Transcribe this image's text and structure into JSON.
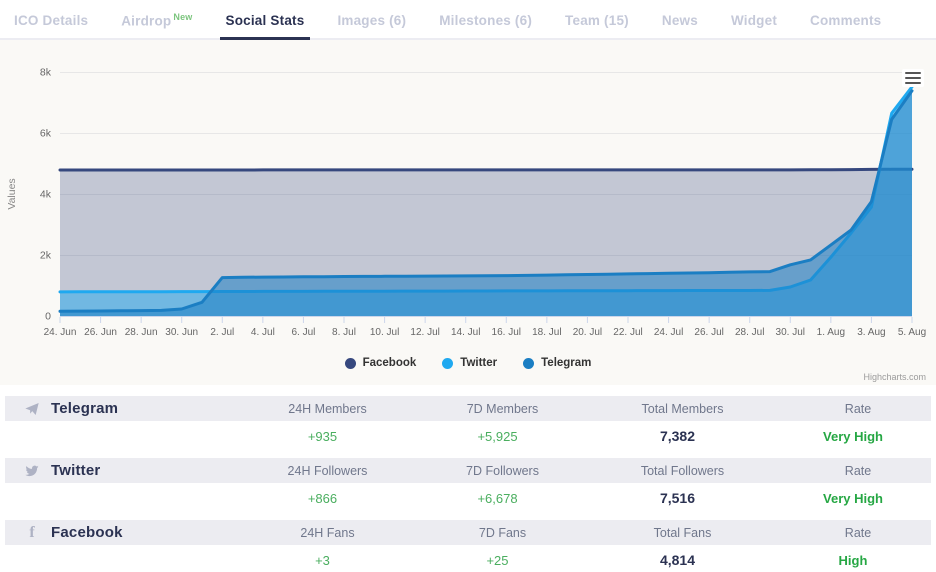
{
  "tabs": {
    "items": [
      {
        "label": "ICO Details",
        "active": false,
        "badge": null
      },
      {
        "label": "Airdrop",
        "active": false,
        "badge": "New"
      },
      {
        "label": "Social Stats",
        "active": true,
        "badge": null
      },
      {
        "label": "Images (6)",
        "active": false,
        "badge": null
      },
      {
        "label": "Milestones (6)",
        "active": false,
        "badge": null
      },
      {
        "label": "Team (15)",
        "active": false,
        "badge": null
      },
      {
        "label": "News",
        "active": false,
        "badge": null
      },
      {
        "label": "Widget",
        "active": false,
        "badge": null
      },
      {
        "label": "Comments",
        "active": false,
        "badge": null
      }
    ]
  },
  "chart_data": {
    "type": "area",
    "title": "",
    "xlabel": "",
    "ylabel": "Values",
    "ylim": [
      0,
      8000
    ],
    "yticks": [
      0,
      2000,
      4000,
      6000,
      8000
    ],
    "ytick_labels": [
      "0",
      "2k",
      "4k",
      "6k",
      "8k"
    ],
    "grid": true,
    "legend_position": "bottom",
    "credits": "Highcharts.com",
    "x_is_daily_dates": "2018-06-24 to 2018-08-05",
    "xtick_every_days": 2,
    "xtick_labels": [
      "24. Jun",
      "26. Jun",
      "28. Jun",
      "30. Jun",
      "2. Jul",
      "4. Jul",
      "6. Jul",
      "8. Jul",
      "10. Jul",
      "12. Jul",
      "14. Jul",
      "16. Jul",
      "18. Jul",
      "20. Jul",
      "22. Jul",
      "24. Jul",
      "26. Jul",
      "28. Jul",
      "30. Jul",
      "1. Aug",
      "3. Aug",
      "5. Aug"
    ],
    "series": [
      {
        "name": "Facebook",
        "color": "#36487e",
        "fill_opacity": 0.28,
        "values": [
          4786,
          4786,
          4786,
          4787,
          4787,
          4787,
          4788,
          4788,
          4788,
          4788,
          4789,
          4789,
          4789,
          4789,
          4789,
          4790,
          4790,
          4790,
          4790,
          4790,
          4790,
          4790,
          4790,
          4790,
          4790,
          4790,
          4790,
          4790,
          4789,
          4789,
          4789,
          4789,
          4789,
          4789,
          4789,
          4789,
          4790,
          4792,
          4795,
          4799,
          4805,
          4811,
          4814
        ]
      },
      {
        "name": "Twitter",
        "color": "#1fa9f0",
        "fill_opacity": 0.5,
        "values": [
          790,
          792,
          793,
          795,
          796,
          798,
          800,
          801,
          803,
          804,
          806,
          807,
          808,
          810,
          811,
          812,
          814,
          815,
          816,
          818,
          819,
          820,
          822,
          823,
          824,
          826,
          827,
          828,
          830,
          832,
          834,
          835,
          836,
          837,
          837,
          838,
          950,
          1180,
          1930,
          2720,
          3570,
          6650,
          7516
        ]
      },
      {
        "name": "Telegram",
        "color": "#1b7ec3",
        "fill_opacity": 0.55,
        "values": [
          155,
          160,
          165,
          170,
          178,
          185,
          230,
          450,
          1260,
          1270,
          1275,
          1280,
          1285,
          1290,
          1295,
          1298,
          1300,
          1305,
          1308,
          1310,
          1315,
          1320,
          1325,
          1330,
          1340,
          1350,
          1360,
          1370,
          1380,
          1390,
          1400,
          1410,
          1420,
          1432,
          1445,
          1457,
          1680,
          1840,
          2330,
          2820,
          3750,
          6447,
          7382
        ]
      }
    ]
  },
  "table": {
    "rows": [
      {
        "network": "Telegram",
        "icon": "telegram-icon",
        "cols": [
          {
            "label": "24H Members",
            "value": "+935"
          },
          {
            "label": "7D Members",
            "value": "+5,925"
          },
          {
            "label": "Total Members",
            "value": "7,382"
          },
          {
            "label": "Rate",
            "value": "Very High"
          }
        ]
      },
      {
        "network": "Twitter",
        "icon": "twitter-icon",
        "cols": [
          {
            "label": "24H Followers",
            "value": "+866"
          },
          {
            "label": "7D Followers",
            "value": "+6,678"
          },
          {
            "label": "Total Followers",
            "value": "7,516"
          },
          {
            "label": "Rate",
            "value": "Very High"
          }
        ]
      },
      {
        "network": "Facebook",
        "icon": "facebook-icon",
        "cols": [
          {
            "label": "24H Fans",
            "value": "+3"
          },
          {
            "label": "7D Fans",
            "value": "+25"
          },
          {
            "label": "Total Fans",
            "value": "4,814"
          },
          {
            "label": "Rate",
            "value": "High"
          }
        ]
      }
    ]
  },
  "colors": {
    "active_tab": "#2b3252",
    "inactive_tab": "#c5c9d9",
    "badge_green": "#7cc57e",
    "panel_bg": "#faf9f6",
    "gridline": "#e7e7e7",
    "axis": "#ccd6eb",
    "axis_text": "#666666",
    "value_green": "#4aae5f",
    "rate_green": "#26a744",
    "dark_navy": "#2b3252",
    "icon_gray": "#aeb2c4"
  }
}
